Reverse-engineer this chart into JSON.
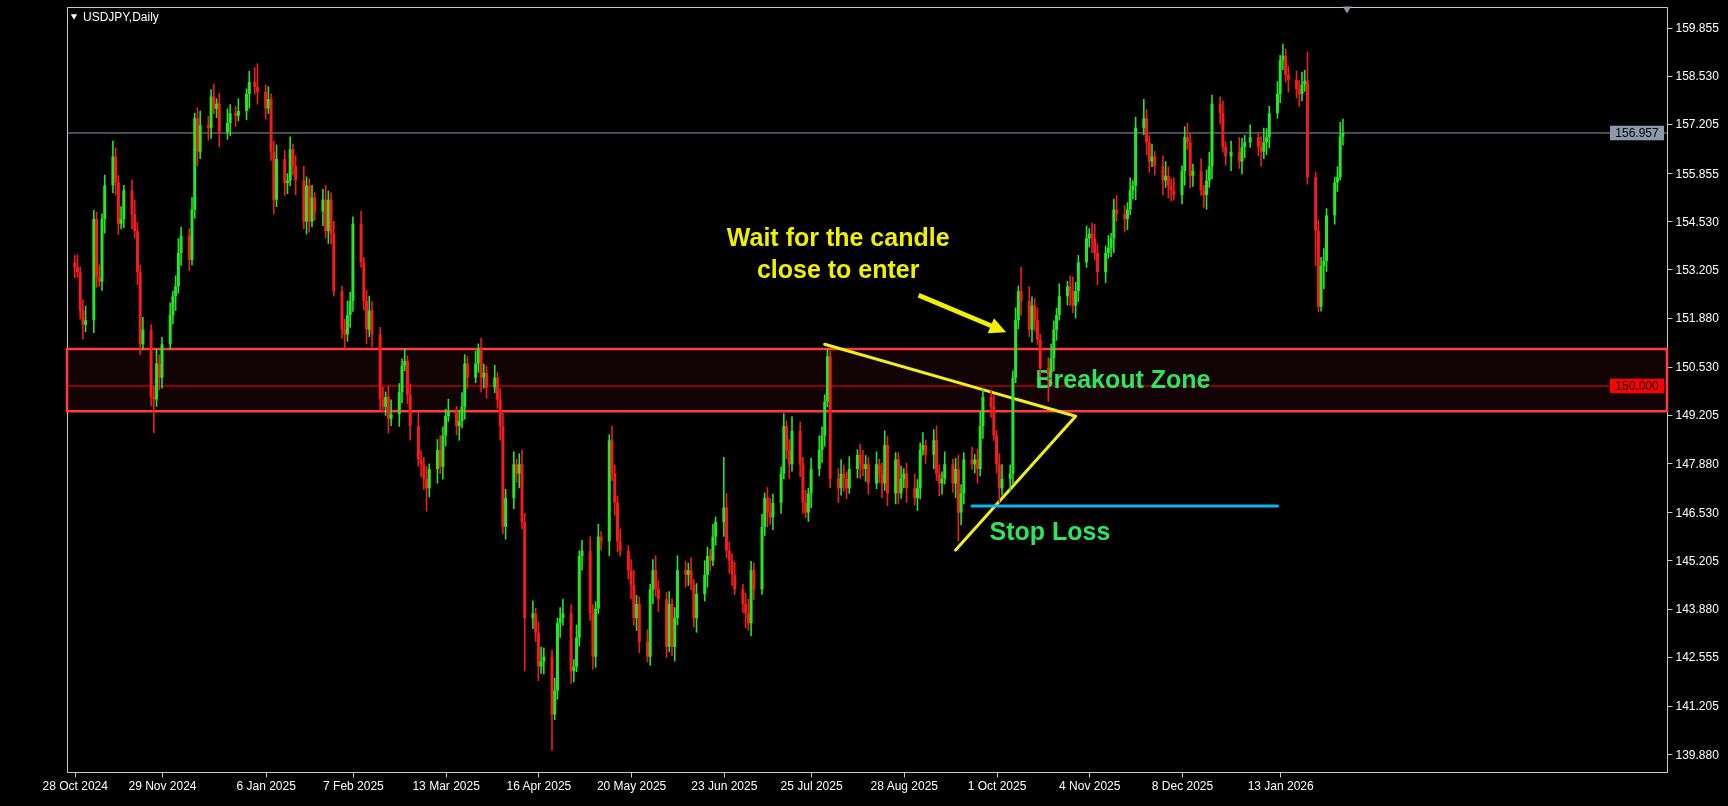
{
  "chart_data": {
    "type": "candlestick",
    "title": "USDJPY,Daily",
    "x": [
      "2024-10-28",
      "2024-10-29",
      "2024-10-30",
      "2024-10-31",
      "2024-11-01",
      "2024-11-04",
      "2024-11-05",
      "2024-11-06",
      "2024-11-07",
      "2024-11-08",
      "2024-11-11",
      "2024-11-12",
      "2024-11-13",
      "2024-11-14",
      "2024-11-15",
      "2024-11-18",
      "2024-11-19",
      "2024-11-20",
      "2024-11-21",
      "2024-11-22",
      "2024-11-25",
      "2024-11-26",
      "2024-11-27",
      "2024-11-28",
      "2024-11-29",
      "2024-12-02",
      "2024-12-03",
      "2024-12-04",
      "2024-12-05",
      "2024-12-06",
      "2024-12-09",
      "2024-12-10",
      "2024-12-11",
      "2024-12-12",
      "2024-12-13",
      "2024-12-16",
      "2024-12-17",
      "2024-12-18",
      "2024-12-19",
      "2024-12-20",
      "2024-12-23",
      "2024-12-24",
      "2024-12-26",
      "2024-12-27",
      "2024-12-30",
      "2024-12-31",
      "2025-01-02",
      "2025-01-03",
      "2025-01-06",
      "2025-01-07",
      "2025-01-08",
      "2025-01-09",
      "2025-01-10",
      "2025-01-13",
      "2025-01-14",
      "2025-01-15",
      "2025-01-16",
      "2025-01-17",
      "2025-01-20",
      "2025-01-21",
      "2025-01-22",
      "2025-01-23",
      "2025-01-24",
      "2025-01-27",
      "2025-01-28",
      "2025-01-29",
      "2025-01-30",
      "2025-01-31",
      "2025-02-03",
      "2025-02-04",
      "2025-02-05",
      "2025-02-06",
      "2025-02-07",
      "2025-02-10",
      "2025-02-11",
      "2025-02-12",
      "2025-02-13",
      "2025-02-14",
      "2025-02-17",
      "2025-02-18",
      "2025-02-19",
      "2025-02-20",
      "2025-02-21",
      "2025-02-24",
      "2025-02-25",
      "2025-02-26",
      "2025-02-27",
      "2025-02-28",
      "2025-03-03",
      "2025-03-04",
      "2025-03-05",
      "2025-03-06",
      "2025-03-07",
      "2025-03-10",
      "2025-03-11",
      "2025-03-12",
      "2025-03-13",
      "2025-03-14",
      "2025-03-17",
      "2025-03-18",
      "2025-03-19",
      "2025-03-20",
      "2025-03-21",
      "2025-03-24",
      "2025-03-25",
      "2025-03-26",
      "2025-03-27",
      "2025-03-28",
      "2025-03-31",
      "2025-04-01",
      "2025-04-02",
      "2025-04-03",
      "2025-04-04",
      "2025-04-07",
      "2025-04-08",
      "2025-04-09",
      "2025-04-10",
      "2025-04-11",
      "2025-04-14",
      "2025-04-15",
      "2025-04-16",
      "2025-04-17",
      "2025-04-18",
      "2025-04-21",
      "2025-04-22",
      "2025-04-23",
      "2025-04-24",
      "2025-04-25",
      "2025-04-28",
      "2025-04-29",
      "2025-04-30",
      "2025-05-01",
      "2025-05-02",
      "2025-05-05",
      "2025-05-06",
      "2025-05-07",
      "2025-05-08",
      "2025-05-09",
      "2025-05-12",
      "2025-05-13",
      "2025-05-14",
      "2025-05-15",
      "2025-05-16",
      "2025-05-19",
      "2025-05-20",
      "2025-05-21",
      "2025-05-22",
      "2025-05-23",
      "2025-05-26",
      "2025-05-27",
      "2025-05-28",
      "2025-05-29",
      "2025-05-30",
      "2025-06-02",
      "2025-06-03",
      "2025-06-04",
      "2025-06-05",
      "2025-06-06",
      "2025-06-09",
      "2025-06-10",
      "2025-06-11",
      "2025-06-12",
      "2025-06-13",
      "2025-06-16",
      "2025-06-17",
      "2025-06-18",
      "2025-06-19",
      "2025-06-20",
      "2025-06-23",
      "2025-06-24",
      "2025-06-25",
      "2025-06-26",
      "2025-06-27",
      "2025-06-30",
      "2025-07-01",
      "2025-07-02",
      "2025-07-03",
      "2025-07-04",
      "2025-07-07",
      "2025-07-08",
      "2025-07-09",
      "2025-07-10",
      "2025-07-11",
      "2025-07-14",
      "2025-07-15",
      "2025-07-16",
      "2025-07-17",
      "2025-07-18",
      "2025-07-21",
      "2025-07-22",
      "2025-07-23",
      "2025-07-24",
      "2025-07-25",
      "2025-07-28",
      "2025-07-29",
      "2025-07-30",
      "2025-07-31",
      "2025-08-01",
      "2025-08-04",
      "2025-08-05",
      "2025-08-06",
      "2025-08-07",
      "2025-08-08",
      "2025-08-11",
      "2025-08-12",
      "2025-08-13",
      "2025-08-14",
      "2025-08-15",
      "2025-08-18",
      "2025-08-19",
      "2025-08-20",
      "2025-08-21",
      "2025-08-22",
      "2025-08-25",
      "2025-08-26",
      "2025-08-27",
      "2025-08-28",
      "2025-08-29",
      "2025-09-01",
      "2025-09-02",
      "2025-09-03",
      "2025-09-04",
      "2025-09-05",
      "2025-09-08",
      "2025-09-09",
      "2025-09-10",
      "2025-09-11",
      "2025-09-12",
      "2025-09-15",
      "2025-09-16",
      "2025-09-17",
      "2025-09-18",
      "2025-09-19",
      "2025-09-22",
      "2025-09-23",
      "2025-09-24",
      "2025-09-25",
      "2025-09-26",
      "2025-09-29",
      "2025-09-30",
      "2025-10-01",
      "2025-10-02",
      "2025-10-03",
      "2025-10-06",
      "2025-10-07",
      "2025-10-08",
      "2025-10-09",
      "2025-10-10",
      "2025-10-13",
      "2025-10-14",
      "2025-10-15",
      "2025-10-16",
      "2025-10-17",
      "2025-10-20",
      "2025-10-21",
      "2025-10-22",
      "2025-10-23",
      "2025-10-24",
      "2025-10-27",
      "2025-10-28",
      "2025-10-29",
      "2025-10-30",
      "2025-10-31",
      "2025-11-03",
      "2025-11-04",
      "2025-11-05",
      "2025-11-06",
      "2025-11-07",
      "2025-11-10",
      "2025-11-11",
      "2025-11-12",
      "2025-11-13",
      "2025-11-14",
      "2025-11-17",
      "2025-11-18",
      "2025-11-19",
      "2025-11-20",
      "2025-11-21",
      "2025-11-24",
      "2025-11-25",
      "2025-11-26",
      "2025-11-27",
      "2025-11-28",
      "2025-12-01",
      "2025-12-02",
      "2025-12-03",
      "2025-12-04",
      "2025-12-05",
      "2025-12-08",
      "2025-12-09",
      "2025-12-10",
      "2025-12-11",
      "2025-12-12",
      "2025-12-15",
      "2025-12-16",
      "2025-12-17",
      "2025-12-18",
      "2025-12-19",
      "2025-12-22",
      "2025-12-23",
      "2025-12-24",
      "2025-12-26",
      "2025-12-29",
      "2025-12-30",
      "2025-12-31",
      "2026-01-02",
      "2026-01-05",
      "2026-01-06",
      "2026-01-07",
      "2026-01-08",
      "2026-01-09",
      "2026-01-12",
      "2026-01-13",
      "2026-01-14",
      "2026-01-15",
      "2026-01-16",
      "2026-01-19",
      "2026-01-20",
      "2026-01-21",
      "2026-01-22",
      "2026-01-23",
      "2026-01-26",
      "2026-01-27",
      "2026-01-28",
      "2026-01-29",
      "2026-01-30",
      "2026-02-02",
      "2026-02-03",
      "2026-02-04",
      "2026-02-05"
    ],
    "ohlc": [
      [
        153.4,
        153.6,
        152.97,
        153.27
      ],
      [
        153.27,
        153.62,
        152.98,
        153.13
      ],
      [
        153.13,
        153.28,
        151.83,
        152.08
      ],
      [
        152.08,
        152.38,
        151.28,
        151.68
      ],
      [
        151.68,
        152.21,
        151.48,
        151.81
      ],
      [
        151.81,
        154.84,
        151.46,
        154.59
      ],
      [
        154.59,
        154.79,
        152.7,
        153.0
      ],
      [
        153.0,
        153.35,
        152.72,
        152.87
      ],
      [
        152.87,
        154.74,
        152.62,
        154.59
      ],
      [
        154.59,
        155.81,
        154.19,
        155.51
      ],
      [
        155.51,
        156.74,
        155.31,
        156.31
      ],
      [
        156.31,
        156.56,
        155.25,
        155.6
      ],
      [
        155.6,
        155.8,
        154.16,
        154.46
      ],
      [
        154.46,
        154.94,
        154.31,
        154.59
      ],
      [
        154.59,
        155.53,
        154.34,
        155.38
      ],
      [
        155.38,
        155.68,
        154.32,
        154.72
      ],
      [
        154.72,
        155.12,
        154.06,
        154.26
      ],
      [
        154.26,
        154.51,
        152.78,
        153.13
      ],
      [
        153.13,
        153.33,
        150.85,
        151.15
      ],
      [
        151.15,
        151.9,
        151.0,
        151.55
      ],
      [
        151.55,
        151.7,
        149.45,
        149.7
      ],
      [
        149.7,
        150.0,
        148.7,
        149.63
      ],
      [
        149.63,
        151.02,
        149.43,
        150.62
      ],
      [
        150.62,
        150.87,
        149.88,
        150.23
      ],
      [
        150.23,
        151.35,
        149.93,
        151.15
      ],
      [
        151.15,
        152.3,
        151.0,
        151.95
      ],
      [
        151.95,
        152.62,
        151.7,
        152.47
      ],
      [
        152.47,
        153.04,
        152.07,
        152.74
      ],
      [
        152.74,
        154.06,
        152.54,
        153.66
      ],
      [
        153.66,
        154.38,
        153.31,
        154.13
      ],
      [
        154.13,
        154.33,
        153.17,
        153.47
      ],
      [
        153.47,
        155.2,
        153.32,
        154.85
      ],
      [
        154.85,
        157.51,
        154.6,
        157.36
      ],
      [
        157.36,
        157.66,
        156.04,
        156.44
      ],
      [
        156.44,
        157.57,
        156.24,
        157.17
      ],
      [
        157.17,
        157.42,
        156.75,
        157.1
      ],
      [
        157.1,
        158.16,
        156.8,
        157.96
      ],
      [
        157.96,
        158.31,
        157.47,
        157.62
      ],
      [
        157.62,
        157.91,
        157.37,
        157.76
      ],
      [
        157.76,
        158.06,
        156.57,
        156.97
      ],
      [
        156.97,
        157.63,
        156.77,
        157.23
      ],
      [
        157.23,
        157.75,
        156.88,
        157.5
      ],
      [
        157.5,
        157.7,
        157.13,
        157.43
      ],
      [
        157.43,
        157.91,
        157.28,
        157.56
      ],
      [
        157.56,
        158.18,
        157.31,
        158.03
      ],
      [
        158.03,
        158.66,
        157.63,
        158.36
      ],
      [
        158.36,
        158.76,
        158.02,
        158.22
      ],
      [
        158.22,
        158.87,
        157.74,
        158.09
      ],
      [
        158.09,
        158.29,
        157.33,
        157.63
      ],
      [
        157.63,
        158.24,
        157.48,
        157.89
      ],
      [
        157.89,
        158.04,
        156.19,
        156.44
      ],
      [
        156.44,
        156.74,
        154.72,
        155.12
      ],
      [
        155.12,
        156.64,
        154.92,
        156.24
      ],
      [
        156.24,
        156.49,
        155.23,
        155.58
      ],
      [
        155.58,
        155.85,
        155.28,
        155.65
      ],
      [
        155.65,
        156.86,
        155.5,
        156.51
      ],
      [
        156.51,
        156.66,
        155.79,
        156.04
      ],
      [
        156.04,
        156.34,
        155.25,
        155.65
      ],
      [
        155.65,
        156.05,
        154.32,
        154.52
      ],
      [
        154.52,
        155.76,
        154.17,
        155.51
      ],
      [
        155.51,
        155.71,
        154.22,
        154.52
      ],
      [
        154.52,
        155.53,
        154.37,
        155.18
      ],
      [
        155.18,
        155.33,
        154.55,
        154.8
      ],
      [
        154.8,
        155.42,
        154.4,
        155.12
      ],
      [
        155.12,
        155.52,
        154.06,
        154.26
      ],
      [
        154.26,
        155.37,
        153.91,
        155.12
      ],
      [
        155.12,
        155.32,
        153.89,
        154.19
      ],
      [
        154.19,
        154.54,
        152.46,
        152.61
      ],
      [
        152.61,
        152.76,
        151.3,
        151.55
      ],
      [
        151.55,
        151.85,
        151.02,
        151.42
      ],
      [
        151.42,
        152.35,
        151.22,
        151.95
      ],
      [
        151.95,
        152.59,
        151.6,
        152.34
      ],
      [
        152.34,
        154.66,
        152.04,
        154.46
      ],
      [
        154.46,
        154.81,
        153.25,
        153.4
      ],
      [
        153.4,
        153.55,
        152.09,
        152.34
      ],
      [
        152.34,
        152.64,
        151.15,
        151.55
      ],
      [
        151.55,
        152.48,
        151.35,
        152.08
      ],
      [
        152.08,
        152.33,
        151.07,
        151.42
      ],
      [
        151.42,
        151.62,
        149.33,
        149.63
      ],
      [
        149.63,
        149.98,
        149.28,
        149.43
      ],
      [
        149.43,
        149.85,
        149.18,
        149.7
      ],
      [
        149.7,
        150.0,
        148.7,
        149.1
      ],
      [
        149.1,
        149.63,
        148.9,
        149.23
      ],
      [
        149.23,
        150.08,
        148.88,
        149.83
      ],
      [
        149.83,
        150.76,
        149.53,
        150.56
      ],
      [
        150.56,
        151.04,
        150.41,
        150.69
      ],
      [
        150.69,
        150.84,
        149.51,
        149.76
      ],
      [
        149.76,
        150.06,
        148.5,
        148.9
      ],
      [
        148.9,
        149.3,
        147.78,
        147.98
      ],
      [
        147.98,
        148.23,
        147.5,
        147.85
      ],
      [
        147.85,
        148.05,
        147.15,
        147.45
      ],
      [
        147.45,
        147.8,
        146.55,
        147.19
      ],
      [
        147.19,
        147.87,
        146.94,
        147.72
      ],
      [
        147.72,
        148.54,
        147.32,
        148.24
      ],
      [
        148.24,
        148.64,
        147.58,
        147.78
      ],
      [
        147.78,
        148.89,
        147.43,
        148.64
      ],
      [
        148.64,
        149.37,
        148.34,
        149.17
      ],
      [
        149.17,
        149.65,
        149.02,
        149.3
      ],
      [
        149.3,
        149.45,
        148.65,
        148.9
      ],
      [
        148.9,
        149.34,
        148.5,
        149.04
      ],
      [
        149.04,
        149.83,
        148.84,
        149.43
      ],
      [
        149.43,
        150.87,
        149.08,
        150.62
      ],
      [
        150.62,
        150.82,
        149.93,
        150.23
      ],
      [
        150.23,
        150.97,
        150.08,
        150.62
      ],
      [
        150.62,
        151.17,
        150.37,
        151.02
      ],
      [
        151.02,
        151.32,
        149.83,
        150.23
      ],
      [
        150.23,
        150.61,
        149.93,
        150.36
      ],
      [
        150.36,
        150.56,
        149.66,
        149.96
      ],
      [
        149.96,
        150.58,
        149.81,
        150.23
      ],
      [
        150.23,
        150.38,
        149.38,
        149.63
      ],
      [
        149.63,
        149.93,
        148.5,
        148.9
      ],
      [
        148.9,
        149.3,
        145.93,
        146.13
      ],
      [
        146.13,
        147.17,
        145.78,
        146.92
      ],
      [
        146.92,
        148.2,
        146.62,
        147.85
      ],
      [
        147.85,
        148.0,
        147.34,
        147.59
      ],
      [
        147.59,
        148.15,
        147.19,
        147.85
      ],
      [
        147.85,
        148.25,
        146.06,
        146.26
      ],
      [
        146.26,
        146.51,
        142.16,
        143.62
      ],
      [
        143.62,
        144.1,
        143.32,
        143.75
      ],
      [
        143.75,
        143.9,
        142.97,
        143.22
      ],
      [
        143.22,
        143.52,
        141.89,
        142.29
      ],
      [
        142.29,
        142.83,
        142.09,
        142.43
      ],
      [
        142.43,
        142.81,
        142.08,
        142.56
      ],
      [
        142.56,
        142.76,
        139.98,
        140.97
      ],
      [
        140.97,
        141.98,
        140.82,
        141.63
      ],
      [
        141.63,
        143.63,
        141.38,
        143.48
      ],
      [
        143.48,
        143.92,
        143.08,
        143.62
      ],
      [
        143.62,
        144.15,
        143.42,
        143.75
      ],
      [
        143.75,
        144.0,
        141.81,
        142.16
      ],
      [
        142.16,
        142.49,
        141.86,
        142.29
      ],
      [
        142.29,
        143.44,
        142.14,
        143.09
      ],
      [
        143.09,
        145.48,
        142.84,
        145.33
      ],
      [
        145.33,
        145.77,
        144.93,
        145.47
      ],
      [
        145.47,
        145.87,
        143.55,
        143.75
      ],
      [
        143.75,
        144.0,
        142.21,
        142.56
      ],
      [
        142.56,
        144.08,
        142.26,
        143.88
      ],
      [
        143.88,
        146.21,
        143.73,
        145.86
      ],
      [
        145.86,
        146.01,
        145.48,
        145.73
      ],
      [
        145.73,
        148.67,
        145.33,
        148.51
      ],
      [
        148.51,
        148.91,
        147.39,
        147.59
      ],
      [
        147.59,
        147.84,
        146.44,
        146.79
      ],
      [
        146.79,
        146.99,
        145.43,
        145.73
      ],
      [
        145.73,
        146.08,
        145.32,
        145.47
      ],
      [
        145.47,
        145.62,
        144.69,
        144.94
      ],
      [
        144.94,
        145.24,
        144.14,
        144.54
      ],
      [
        144.54,
        144.94,
        143.42,
        143.62
      ],
      [
        143.62,
        144.26,
        143.27,
        144.01
      ],
      [
        144.01,
        144.21,
        142.66,
        142.96
      ],
      [
        142.96,
        143.31,
        142.41,
        142.56
      ],
      [
        142.56,
        144.56,
        142.31,
        144.41
      ],
      [
        144.41,
        145.24,
        144.01,
        144.94
      ],
      [
        144.94,
        145.34,
        144.21,
        144.41
      ],
      [
        144.41,
        144.66,
        143.79,
        144.14
      ],
      [
        144.14,
        144.34,
        142.53,
        142.83
      ],
      [
        142.83,
        144.36,
        142.68,
        144.01
      ],
      [
        144.01,
        144.16,
        142.58,
        142.83
      ],
      [
        142.83,
        143.92,
        142.43,
        143.62
      ],
      [
        143.62,
        145.34,
        143.42,
        144.94
      ],
      [
        144.94,
        145.19,
        144.46,
        144.81
      ],
      [
        144.81,
        145.14,
        144.51,
        144.94
      ],
      [
        144.94,
        145.29,
        144.39,
        144.54
      ],
      [
        144.54,
        144.69,
        143.37,
        143.62
      ],
      [
        143.62,
        144.58,
        143.22,
        144.28
      ],
      [
        144.28,
        145.21,
        144.08,
        144.81
      ],
      [
        144.81,
        145.58,
        144.46,
        145.33
      ],
      [
        145.33,
        145.53,
        144.9,
        145.2
      ],
      [
        145.2,
        146.21,
        145.05,
        145.86
      ],
      [
        145.86,
        146.41,
        145.61,
        146.26
      ],
      [
        146.26,
        148.05,
        145.86,
        146.66
      ],
      [
        146.66,
        147.06,
        145.27,
        145.47
      ],
      [
        145.47,
        145.72,
        144.85,
        145.2
      ],
      [
        145.2,
        145.4,
        144.51,
        144.81
      ],
      [
        144.81,
        145.16,
        144.26,
        144.41
      ],
      [
        144.41,
        144.56,
        143.76,
        144.01
      ],
      [
        144.01,
        144.31,
        143.35,
        143.75
      ],
      [
        143.75,
        144.15,
        143.28,
        143.48
      ],
      [
        143.48,
        145.19,
        143.13,
        144.94
      ],
      [
        144.94,
        145.14,
        144.11,
        144.41
      ],
      [
        144.41,
        146.48,
        144.26,
        146.13
      ],
      [
        146.13,
        147.07,
        145.88,
        146.92
      ],
      [
        146.92,
        147.22,
        146.12,
        146.52
      ],
      [
        146.52,
        146.92,
        146.19,
        146.39
      ],
      [
        146.39,
        147.04,
        146.04,
        146.79
      ],
      [
        146.79,
        147.79,
        146.49,
        147.59
      ],
      [
        147.59,
        149.25,
        147.44,
        148.9
      ],
      [
        148.9,
        149.05,
        147.99,
        148.24
      ],
      [
        148.24,
        148.54,
        147.45,
        147.85
      ],
      [
        147.85,
        149.17,
        147.65,
        148.77
      ],
      [
        148.77,
        149.02,
        147.5,
        147.85
      ],
      [
        147.85,
        148.05,
        146.49,
        146.79
      ],
      [
        146.79,
        147.14,
        146.37,
        146.52
      ],
      [
        146.52,
        147.2,
        146.27,
        147.05
      ],
      [
        147.05,
        148.02,
        146.65,
        147.72
      ],
      [
        147.72,
        148.64,
        147.52,
        148.24
      ],
      [
        148.24,
        148.89,
        147.89,
        148.64
      ],
      [
        148.64,
        149.77,
        148.34,
        149.57
      ],
      [
        149.57,
        151.02,
        149.42,
        150.82
      ],
      [
        150.82,
        150.97,
        147.2,
        147.45
      ],
      [
        147.45,
        147.75,
        146.79,
        147.19
      ],
      [
        147.19,
        147.99,
        146.99,
        147.59
      ],
      [
        147.59,
        147.84,
        147.1,
        147.45
      ],
      [
        147.45,
        147.65,
        146.89,
        147.19
      ],
      [
        147.19,
        148.07,
        147.04,
        147.72
      ],
      [
        147.72,
        148.26,
        147.47,
        148.11
      ],
      [
        148.11,
        148.41,
        147.45,
        147.85
      ],
      [
        147.85,
        148.25,
        147.52,
        147.72
      ],
      [
        147.72,
        148.1,
        147.37,
        147.85
      ],
      [
        147.85,
        148.05,
        147.02,
        147.32
      ],
      [
        147.32,
        148.2,
        147.17,
        147.85
      ],
      [
        147.85,
        148.0,
        147.34,
        147.59
      ],
      [
        147.59,
        147.89,
        146.92,
        147.32
      ],
      [
        147.32,
        148.78,
        147.12,
        148.38
      ],
      [
        148.38,
        148.63,
        146.7,
        147.05
      ],
      [
        147.05,
        148.18,
        146.75,
        147.98
      ],
      [
        147.98,
        148.18,
        146.75,
        147.05
      ],
      [
        147.05,
        147.8,
        146.9,
        147.45
      ],
      [
        147.45,
        147.74,
        147.2,
        147.59
      ],
      [
        147.59,
        147.89,
        146.79,
        147.19
      ],
      [
        147.19,
        147.59,
        146.72,
        146.92
      ],
      [
        146.92,
        147.44,
        146.57,
        147.19
      ],
      [
        147.19,
        148.44,
        146.89,
        148.24
      ],
      [
        148.24,
        148.73,
        148.09,
        148.38
      ],
      [
        148.38,
        148.53,
        147.86,
        148.11
      ],
      [
        148.11,
        148.81,
        147.71,
        148.51
      ],
      [
        148.51,
        148.91,
        147.39,
        147.59
      ],
      [
        147.59,
        147.84,
        146.97,
        147.32
      ],
      [
        147.32,
        147.65,
        147.02,
        147.45
      ],
      [
        147.45,
        148.2,
        147.3,
        147.85
      ],
      [
        147.85,
        148.0,
        147.07,
        147.32
      ],
      [
        147.32,
        148.02,
        146.92,
        147.72
      ],
      [
        147.72,
        148.12,
        145.73,
        146.52
      ],
      [
        146.52,
        147.3,
        146.17,
        147.05
      ],
      [
        147.05,
        148.18,
        146.75,
        147.98
      ],
      [
        147.98,
        148.33,
        147.7,
        147.85
      ],
      [
        147.85,
        148.13,
        147.6,
        147.98
      ],
      [
        147.98,
        148.28,
        147.32,
        147.72
      ],
      [
        147.72,
        149.3,
        147.52,
        148.9
      ],
      [
        148.9,
        149.95,
        148.55,
        149.7
      ],
      [
        149.7,
        149.9,
        149.13,
        149.43
      ],
      [
        149.43,
        149.78,
        148.49,
        148.64
      ],
      [
        148.64,
        148.79,
        147.6,
        147.85
      ],
      [
        147.85,
        148.15,
        146.79,
        147.19
      ],
      [
        147.19,
        147.85,
        146.99,
        147.45
      ],
      [
        147.45,
        147.84,
        147.1,
        147.59
      ],
      [
        147.59,
        150.43,
        147.29,
        150.23
      ],
      [
        150.23,
        152.16,
        150.08,
        151.81
      ],
      [
        151.81,
        152.76,
        151.56,
        152.61
      ],
      [
        152.61,
        153.27,
        151.94,
        152.34
      ],
      [
        152.34,
        152.74,
        151.35,
        151.55
      ],
      [
        151.55,
        152.46,
        151.2,
        152.21
      ],
      [
        152.21,
        152.41,
        151.51,
        151.81
      ],
      [
        151.81,
        152.16,
        151.13,
        151.28
      ],
      [
        151.28,
        151.43,
        150.24,
        150.49
      ],
      [
        150.49,
        150.79,
        149.57,
        150.36
      ],
      [
        150.36,
        151.16,
        150.16,
        150.76
      ],
      [
        150.76,
        151.8,
        150.41,
        151.55
      ],
      [
        151.55,
        152.15,
        151.25,
        151.95
      ],
      [
        151.95,
        152.82,
        151.8,
        152.47
      ],
      [
        152.47,
        152.89,
        152.22,
        152.74
      ],
      [
        152.74,
        153.04,
        152.21,
        152.61
      ],
      [
        152.61,
        153.01,
        152.01,
        152.21
      ],
      [
        152.21,
        152.86,
        151.86,
        152.61
      ],
      [
        152.61,
        153.6,
        152.31,
        153.4
      ],
      [
        153.4,
        154.41,
        153.25,
        154.06
      ],
      [
        154.06,
        154.34,
        153.81,
        154.19
      ],
      [
        154.19,
        154.49,
        153.66,
        154.06
      ],
      [
        154.06,
        154.46,
        153.46,
        153.66
      ],
      [
        153.66,
        153.91,
        152.78,
        153.13
      ],
      [
        153.13,
        153.86,
        152.83,
        153.66
      ],
      [
        153.66,
        154.15,
        153.51,
        153.8
      ],
      [
        153.8,
        154.21,
        153.55,
        154.06
      ],
      [
        154.06,
        155.15,
        153.66,
        154.85
      ],
      [
        154.85,
        155.25,
        154.52,
        154.72
      ],
      [
        154.72,
        154.97,
        154.24,
        154.59
      ],
      [
        154.59,
        155.05,
        154.29,
        154.85
      ],
      [
        154.85,
        155.73,
        154.7,
        155.38
      ],
      [
        155.38,
        155.66,
        155.13,
        155.51
      ],
      [
        155.51,
        157.4,
        155.11,
        157.1
      ],
      [
        157.1,
        157.89,
        156.9,
        157.36
      ],
      [
        157.36,
        157.61,
        156.35,
        156.7
      ],
      [
        156.7,
        156.9,
        155.87,
        156.17
      ],
      [
        156.17,
        156.66,
        156.02,
        156.31
      ],
      [
        156.31,
        156.46,
        155.79,
        156.04
      ],
      [
        156.04,
        156.34,
        155.25,
        155.65
      ],
      [
        155.65,
        156.18,
        155.45,
        155.78
      ],
      [
        155.78,
        156.03,
        155.16,
        155.51
      ],
      [
        155.51,
        155.71,
        155.08,
        155.38
      ],
      [
        155.38,
        155.73,
        155.1,
        155.25
      ],
      [
        155.25,
        156.06,
        155.0,
        155.91
      ],
      [
        155.91,
        157.14,
        155.51,
        156.84
      ],
      [
        156.84,
        157.24,
        156.5,
        156.7
      ],
      [
        156.7,
        156.95,
        155.43,
        155.78
      ],
      [
        155.78,
        156.11,
        155.48,
        155.91
      ],
      [
        155.91,
        156.26,
        155.23,
        155.38
      ],
      [
        155.38,
        155.53,
        154.9,
        155.25
      ],
      [
        155.25,
        155.95,
        154.85,
        155.65
      ],
      [
        155.65,
        156.44,
        155.45,
        156.04
      ],
      [
        156.04,
        158.01,
        155.69,
        157.76
      ],
      [
        157.76,
        157.96,
        157.2,
        157.5
      ],
      [
        157.5,
        157.85,
        156.42,
        156.57
      ],
      [
        156.57,
        156.72,
        156.06,
        156.31
      ],
      [
        156.31,
        156.74,
        155.91,
        156.44
      ],
      [
        156.44,
        156.84,
        155.97,
        156.17
      ],
      [
        156.17,
        156.82,
        155.82,
        156.57
      ],
      [
        156.57,
        156.9,
        156.27,
        156.7
      ],
      [
        156.7,
        157.19,
        156.55,
        156.84
      ],
      [
        156.84,
        156.99,
        156.32,
        156.57
      ],
      [
        156.57,
        156.87,
        156.04,
        156.44
      ],
      [
        156.44,
        157.1,
        156.24,
        156.7
      ],
      [
        156.7,
        157.09,
        156.35,
        156.84
      ],
      [
        156.84,
        157.7,
        156.54,
        157.5
      ],
      [
        157.5,
        158.38,
        157.35,
        158.03
      ],
      [
        158.03,
        159.1,
        157.78,
        158.95
      ],
      [
        158.95,
        159.41,
        158.68,
        159.08
      ],
      [
        159.08,
        159.28,
        158.35,
        158.55
      ],
      [
        158.55,
        158.8,
        158.07,
        158.42
      ],
      [
        158.42,
        158.67,
        157.91,
        158.16
      ],
      [
        158.16,
        158.41,
        157.68,
        158.03
      ],
      [
        158.03,
        158.64,
        157.83,
        158.29
      ],
      [
        158.29,
        158.69,
        158.09,
        158.39
      ],
      [
        158.39,
        159.19,
        155.54,
        155.74
      ],
      [
        155.74,
        155.89,
        153.3,
        154.27
      ],
      [
        154.27,
        154.57,
        152.04,
        152.18
      ],
      [
        152.18,
        153.55,
        152.05,
        153.3
      ],
      [
        153.3,
        153.79,
        152.67,
        153.44
      ],
      [
        153.44,
        154.89,
        153.14,
        154.69
      ],
      [
        154.69,
        155.75,
        154.44,
        155.6
      ],
      [
        155.6,
        156.04,
        155.34,
        155.74
      ],
      [
        155.74,
        157.26,
        155.66,
        156.86
      ],
      [
        156.86,
        157.35,
        156.61,
        156.957
      ]
    ],
    "xlim": [
      "2024-10-27",
      "2026-06-02"
    ],
    "xticks": [
      {
        "value": "2024-10-28",
        "label": "28 Oct 2024"
      },
      {
        "value": "2024-11-29",
        "label": "29 Nov 2024"
      },
      {
        "value": "2025-01-06",
        "label": "6 Jan 2025"
      },
      {
        "value": "2025-02-07",
        "label": "7 Feb 2025"
      },
      {
        "value": "2025-03-13",
        "label": "13 Mar 2025"
      },
      {
        "value": "2025-04-16",
        "label": "16 Apr 2025"
      },
      {
        "value": "2025-05-20",
        "label": "20 May 2025"
      },
      {
        "value": "2025-06-23",
        "label": "23 Jun 2025"
      },
      {
        "value": "2025-07-25",
        "label": "25 Jul 2025"
      },
      {
        "value": "2025-08-28",
        "label": "28 Aug 2025"
      },
      {
        "value": "2025-10-01",
        "label": "1 Oct 2025"
      },
      {
        "value": "2025-11-04",
        "label": "4 Nov 2025"
      },
      {
        "value": "2025-12-08",
        "label": "8 Dec 2025"
      },
      {
        "value": "2026-01-13",
        "label": "13 Jan 2026"
      }
    ],
    "ylim": [
      139.39,
      160.42
    ],
    "yticks": [
      {
        "value": 159.855,
        "label": "159.855"
      },
      {
        "value": 158.53,
        "label": "158.530"
      },
      {
        "value": 157.205,
        "label": "157.205"
      },
      {
        "value": 155.855,
        "label": "155.855"
      },
      {
        "value": 154.53,
        "label": "154.530"
      },
      {
        "value": 153.205,
        "label": "153.205"
      },
      {
        "value": 151.88,
        "label": "151.880"
      },
      {
        "value": 150.53,
        "label": "150.530"
      },
      {
        "value": 149.205,
        "label": "149.205"
      },
      {
        "value": 147.88,
        "label": "147.880"
      },
      {
        "value": 146.53,
        "label": "146.530"
      },
      {
        "value": 145.205,
        "label": "145.205"
      },
      {
        "value": 143.88,
        "label": "143.880"
      },
      {
        "value": 142.555,
        "label": "142.555"
      },
      {
        "value": 141.205,
        "label": "141.205"
      },
      {
        "value": 139.88,
        "label": "139.880"
      }
    ],
    "series": [
      {
        "type": "line",
        "color": "#f0f018",
        "x": [
          "2025-07-30",
          "2025-10-30",
          "2025-09-16"
        ],
        "values": [
          151.15,
          149.17,
          145.49
        ]
      },
      {
        "type": "line",
        "name": "Stop Loss",
        "color": "#10b4f0",
        "x": [
          "2025-09-22",
          "2026-01-12"
        ],
        "values": [
          146.7,
          146.7
        ]
      }
    ],
    "ref_lines": [
      {
        "axis": "y",
        "value": 156.957,
        "label": "156.957",
        "color": "#8a9aaa"
      },
      {
        "axis": "y",
        "value": 150,
        "label": "150.000",
        "color": "#ff0000"
      }
    ],
    "bands": [
      {
        "axis": "y",
        "from": 149.31,
        "to": 151.02,
        "label": "Breakout Zone",
        "color": "#ff3b3b"
      }
    ],
    "annotations": [
      "Wait for the candle close to enter"
    ]
  }
}
